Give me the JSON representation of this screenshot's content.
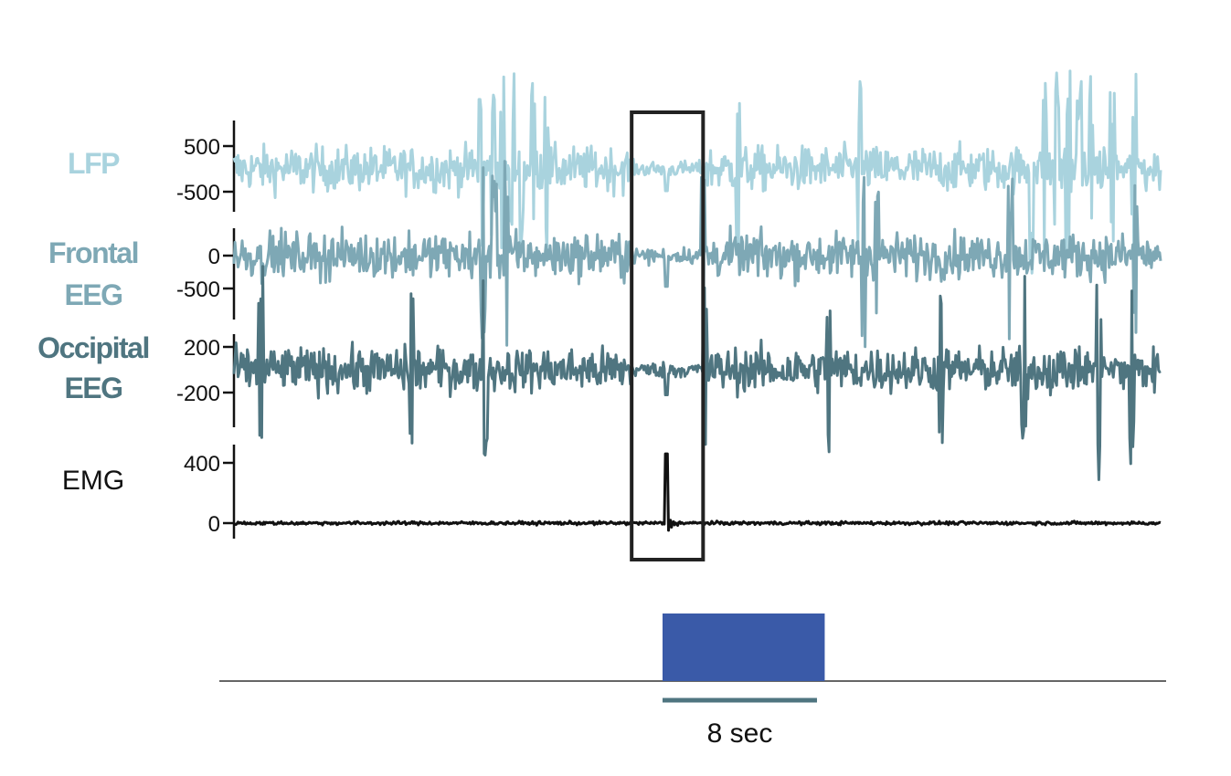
{
  "chart_data": {
    "type": "line",
    "title": "",
    "channels": [
      {
        "name": "LFP",
        "label_lines": [
          "LFP"
        ],
        "color": "#a9d3de",
        "ticks": [
          500,
          -500
        ],
        "tick_labels": [
          "500",
          "-500"
        ],
        "baseline": 0,
        "spike_times": [
          12.8,
          13.4,
          13.9,
          14.4,
          14.9,
          15.5,
          16.2,
          26.1,
          32.4,
          41.3,
          42.0,
          42.6,
          43.2,
          43.8,
          44.4,
          45.5,
          46.6
        ],
        "event_deflection": -480,
        "stroke_width": 3
      },
      {
        "name": "Frontal EEG",
        "label_lines": [
          "Frontal",
          "EEG"
        ],
        "color": "#7ea8b5",
        "ticks": [
          0,
          -500
        ],
        "tick_labels": [
          "0",
          "-500"
        ],
        "baseline": 0,
        "spike_times": [
          12.9,
          13.5,
          14.1,
          24.3,
          32.6,
          33.3,
          40.2,
          46.7
        ],
        "event_deflection": -470,
        "stroke_width": 3
      },
      {
        "name": "Occipital EEG",
        "label_lines": [
          "Occipital",
          "EEG"
        ],
        "color": "#4f7580",
        "ticks": [
          200,
          -200
        ],
        "tick_labels": [
          "200",
          "-200"
        ],
        "baseline": 0,
        "spike_times": [
          1.4,
          9.2,
          13.0,
          24.4,
          30.8,
          36.6,
          40.9,
          44.8,
          46.5
        ],
        "event_deflection": -220,
        "stroke_width": 3
      },
      {
        "name": "EMG",
        "label_lines": [
          "EMG"
        ],
        "color": "#111111",
        "ticks": [
          400,
          0
        ],
        "tick_labels": [
          "400",
          "0"
        ],
        "baseline": 0,
        "event_peak": 460,
        "stroke_width": 3
      }
    ],
    "event_window": {
      "start": 20.6,
      "end": 24.3
    },
    "event_time": 22.4,
    "stimulus": {
      "start": 22.2,
      "end": 30.6,
      "color": "#3a5aa8"
    },
    "scale_bar": {
      "duration": 8,
      "label": "8 sec",
      "color": "#4f7580"
    },
    "x_range": [
      0,
      48
    ]
  }
}
